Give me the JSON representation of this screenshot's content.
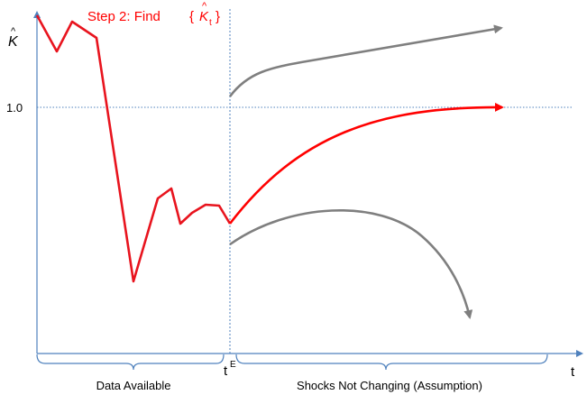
{
  "title": {
    "step_text": "Step 2: Find",
    "brace_open": "{",
    "k_hat": "K",
    "k_sub": "t",
    "brace_close": "}"
  },
  "axes": {
    "y_symbol": "K",
    "y_tick_label": "1.0",
    "x_symbol": "t",
    "te_base": "t",
    "te_sup": "E"
  },
  "annotations": {
    "data_available": "Data Available",
    "shocks_not_changing": "Shocks Not Changing (Assumption)"
  },
  "colors": {
    "axis": "#4f81bd",
    "history": "#e8141e",
    "projection_mid": "#ff0000",
    "projection_other": "#7f7f7f",
    "text": "#000000"
  }
}
